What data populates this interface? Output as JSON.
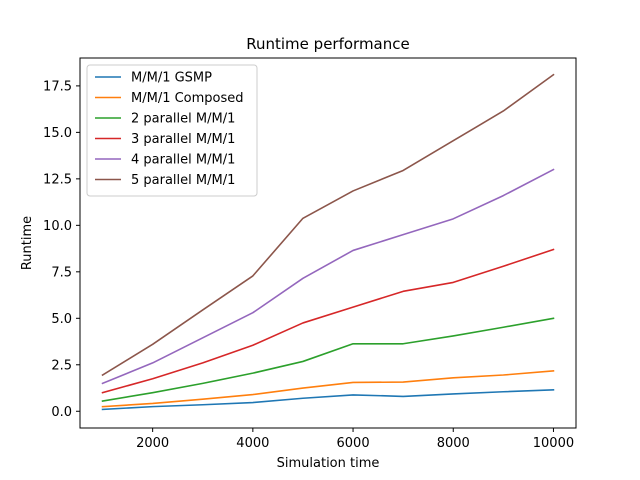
{
  "chart_data": {
    "type": "line",
    "title": "Runtime performance",
    "xlabel": "Simulation time",
    "ylabel": "Runtime",
    "x": [
      1000,
      2000,
      3000,
      4000,
      5000,
      6000,
      7000,
      8000,
      9000,
      10000
    ],
    "xlim": [
      550,
      10450
    ],
    "ylim": [
      -0.9,
      19.0
    ],
    "xticks": [
      2000,
      4000,
      6000,
      8000,
      10000
    ],
    "xtick_labels": [
      "2000",
      "4000",
      "6000",
      "8000",
      "10000"
    ],
    "yticks": [
      0.0,
      2.5,
      5.0,
      7.5,
      10.0,
      12.5,
      15.0,
      17.5
    ],
    "ytick_labels": [
      "0.0",
      "2.5",
      "5.0",
      "7.5",
      "10.0",
      "12.5",
      "15.0",
      "17.5"
    ],
    "grid": false,
    "legend": "top-left",
    "series": [
      {
        "name": "M/M/1 GSMP",
        "color": "#1f77b4",
        "values": [
          0.1,
          0.25,
          0.35,
          0.47,
          0.7,
          0.88,
          0.8,
          0.93,
          1.05,
          1.15
        ]
      },
      {
        "name": "M/M/1 Composed",
        "color": "#ff7f0e",
        "values": [
          0.25,
          0.42,
          0.65,
          0.9,
          1.25,
          1.55,
          1.57,
          1.8,
          1.95,
          2.17
        ]
      },
      {
        "name": "2 parallel M/M/1",
        "color": "#2ca02c",
        "values": [
          0.55,
          1.0,
          1.5,
          2.05,
          2.68,
          3.63,
          3.63,
          4.05,
          4.52,
          5.0
        ]
      },
      {
        "name": "3 parallel M/M/1",
        "color": "#d62728",
        "values": [
          1.0,
          1.75,
          2.6,
          3.55,
          4.75,
          5.6,
          6.45,
          6.93,
          7.8,
          8.7
        ]
      },
      {
        "name": "4 parallel M/M/1",
        "color": "#9467bd",
        "values": [
          1.5,
          2.6,
          3.95,
          5.3,
          7.15,
          8.65,
          9.5,
          10.35,
          11.6,
          13.0
        ]
      },
      {
        "name": "5 parallel M/M/1",
        "color": "#8c564b",
        "values": [
          1.95,
          3.6,
          5.45,
          7.28,
          10.38,
          11.85,
          12.95,
          14.55,
          16.15,
          18.1
        ]
      }
    ]
  }
}
